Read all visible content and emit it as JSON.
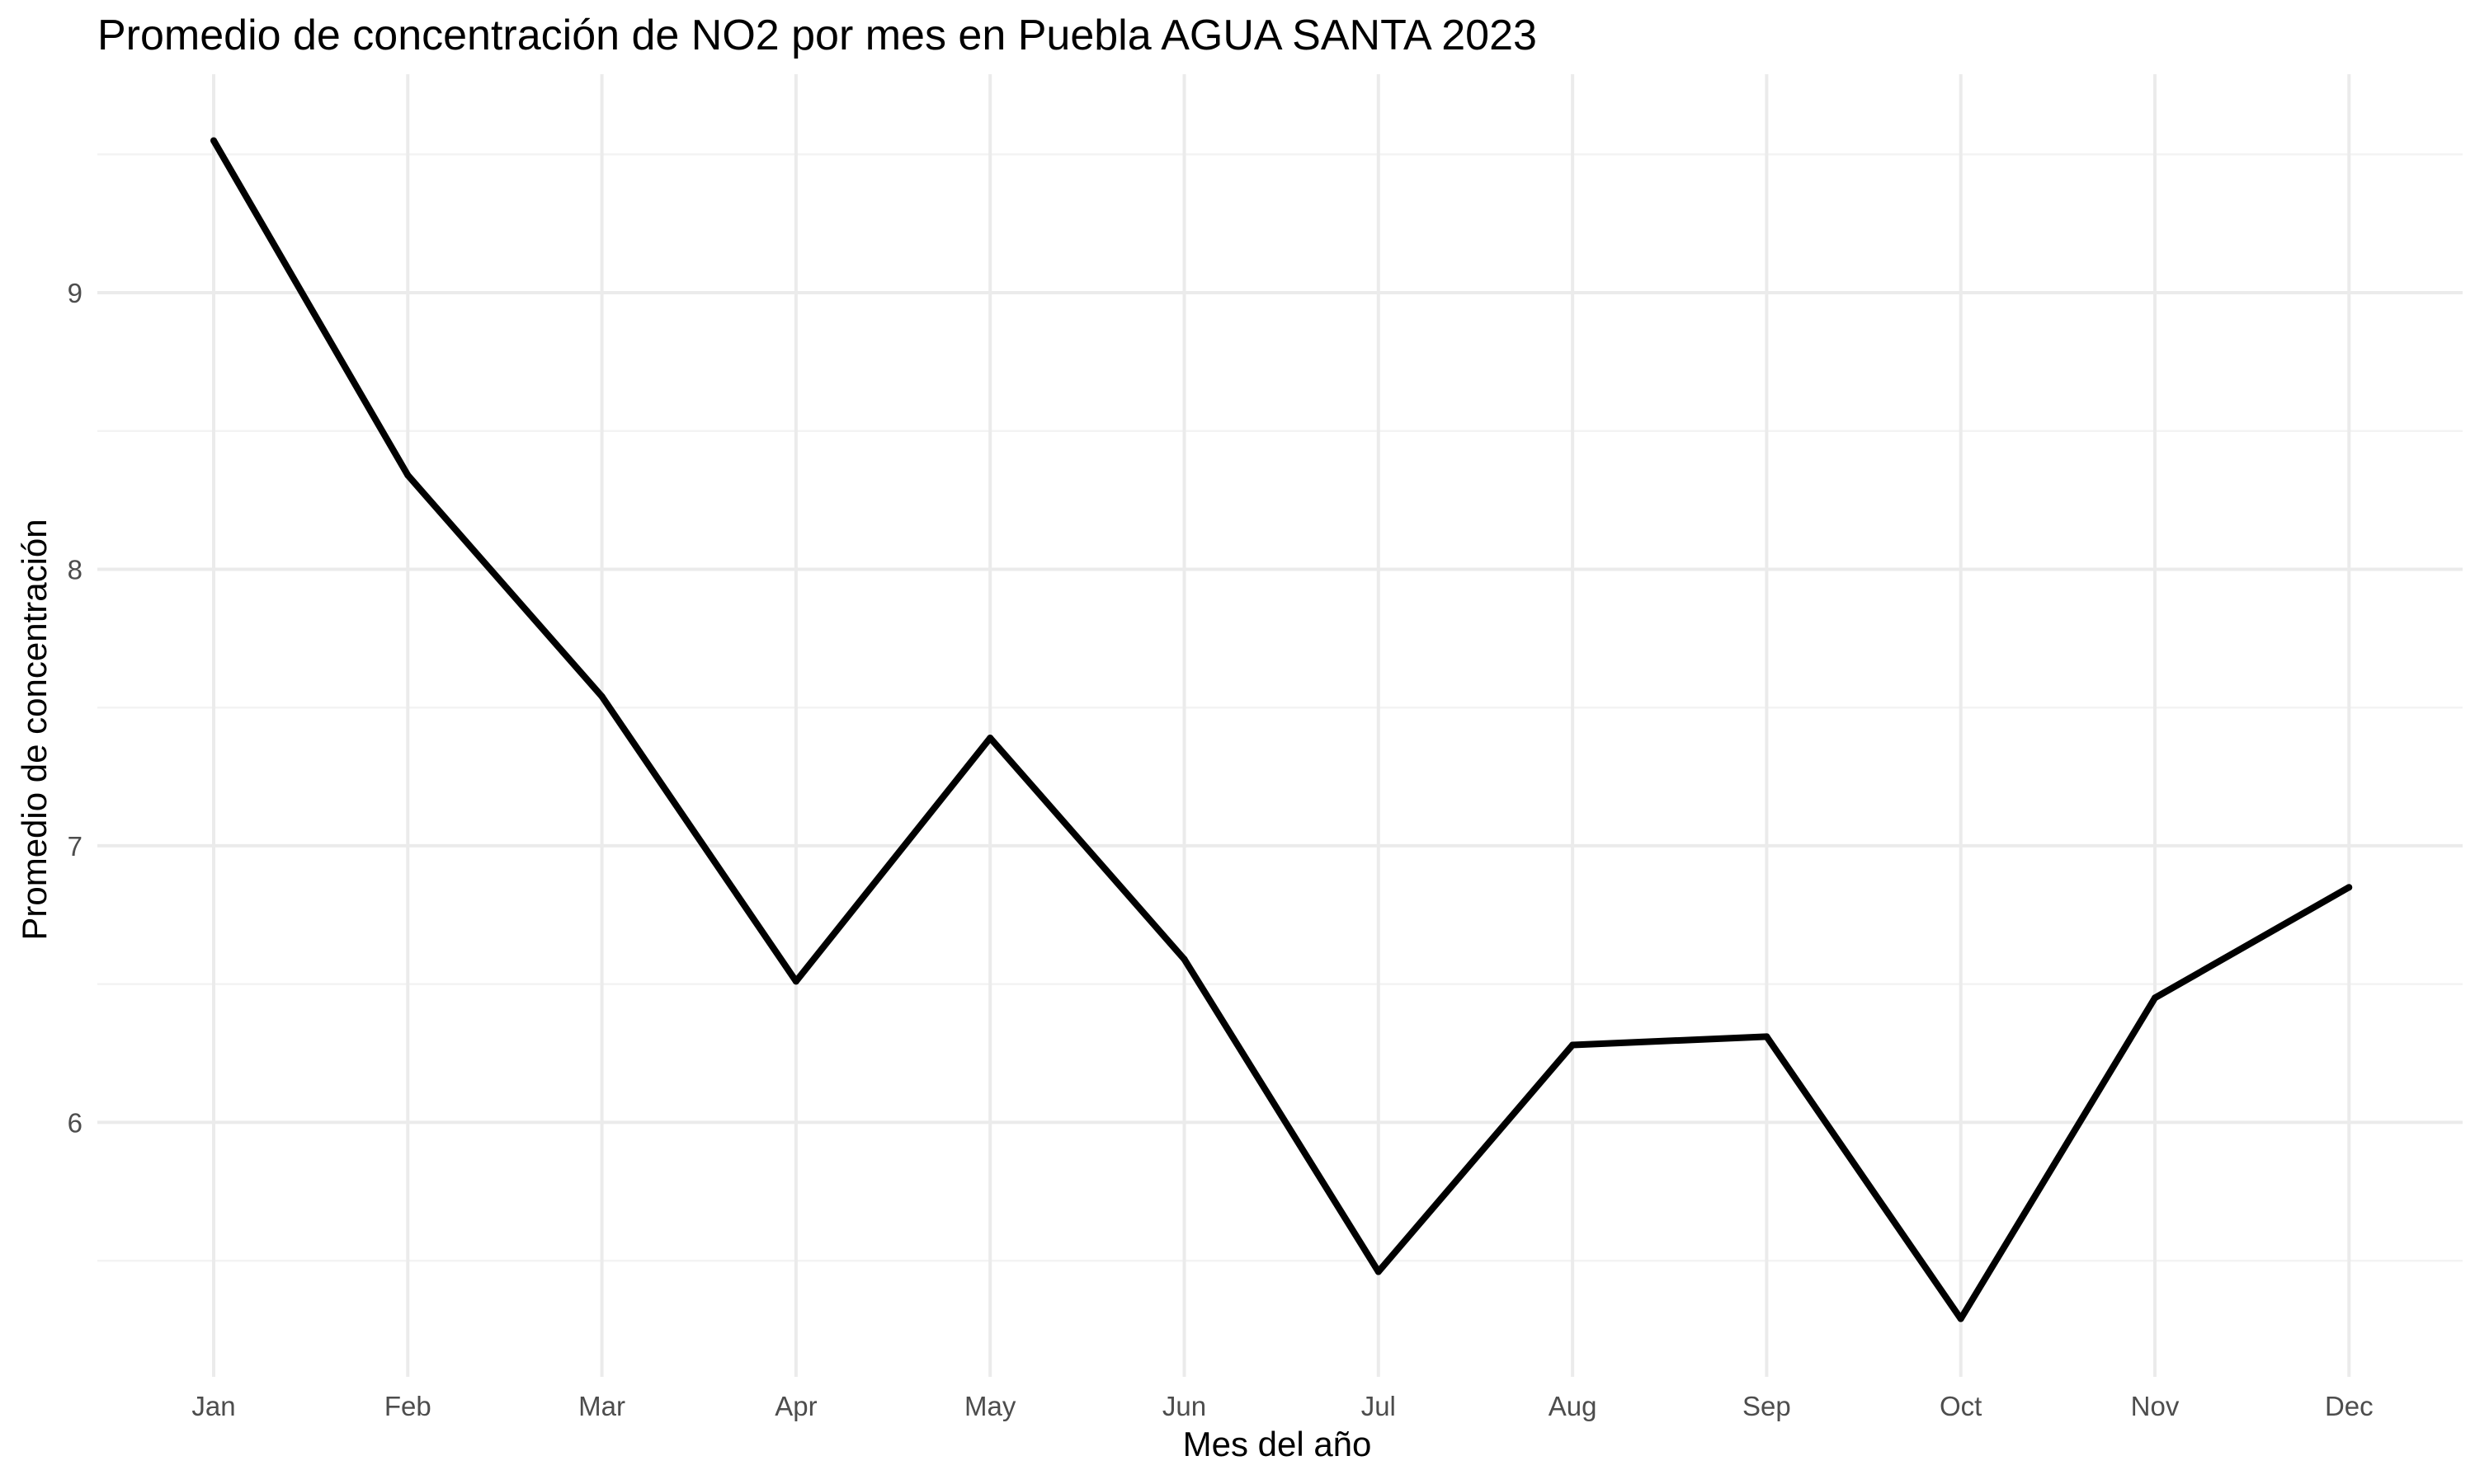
{
  "chart_data": {
    "type": "line",
    "title": "Promedio de concentración de NO2 por mes en Puebla AGUA SANTA 2023",
    "xlabel": "Mes del año",
    "ylabel": "Promedio de concentración",
    "categories": [
      "Jan",
      "Feb",
      "Mar",
      "Apr",
      "May",
      "Jun",
      "Jul",
      "Aug",
      "Sep",
      "Oct",
      "Nov",
      "Dec"
    ],
    "series": [
      {
        "values": [
          9.55,
          8.34,
          7.54,
          6.51,
          7.39,
          6.59,
          5.46,
          6.28,
          6.31,
          5.29,
          6.45,
          6.85
        ]
      }
    ],
    "y_ticks": [
      6,
      7,
      8,
      9
    ],
    "ylim": [
      5.08,
      9.79
    ],
    "grid": true,
    "line_color": "#000000"
  }
}
